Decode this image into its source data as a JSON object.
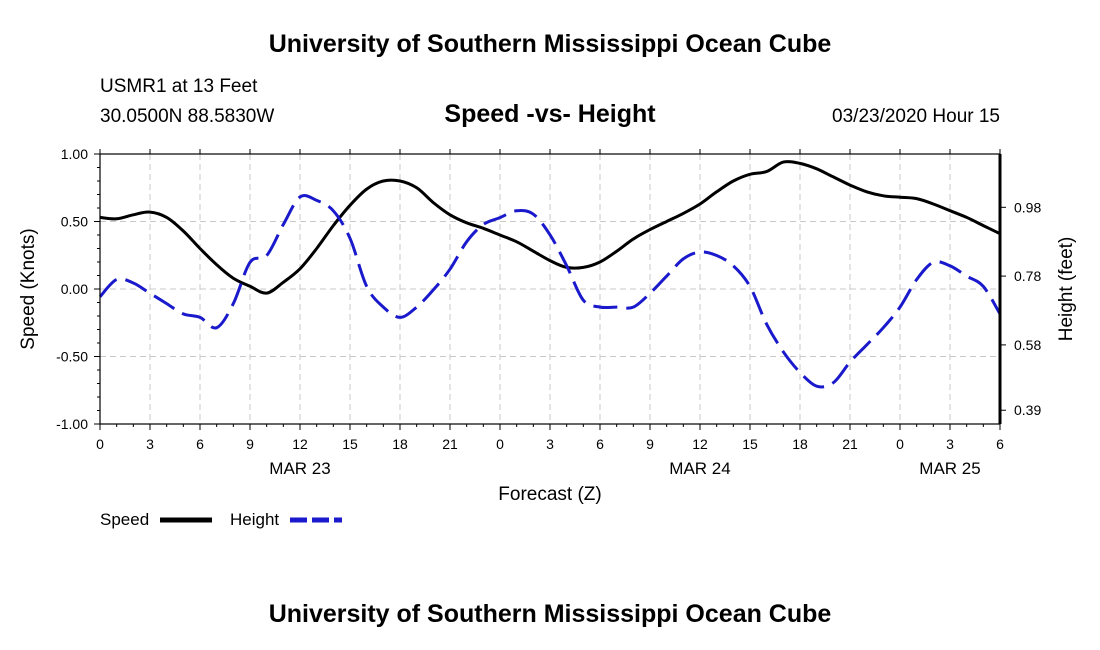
{
  "header": {
    "title": "University of Southern Mississippi Ocean Cube",
    "station": "USMR1 at 13 Feet",
    "coords": "30.0500N 88.5830W",
    "chart_title": "Speed -vs- Height",
    "date": "03/23/2020 Hour 15"
  },
  "footer": {
    "title": "University of Southern Mississippi Ocean Cube"
  },
  "legend": {
    "speed_label": "Speed",
    "height_label": "Height"
  },
  "colors": {
    "speed": "#000000",
    "height": "#1a1acc",
    "grid": "#c8c8c8"
  },
  "chart_data": {
    "type": "line",
    "title": "Speed -vs- Height",
    "xlabel": "Forecast (Z)",
    "ylabel": "Speed (Knots)",
    "ylabel_right": "Height (feet)",
    "x_range": [
      0,
      54
    ],
    "ylim": [
      -1.0,
      1.0
    ],
    "ylim_right": [
      0.35,
      1.135
    ],
    "x_ticks": [
      {
        "x": 0,
        "label": "0"
      },
      {
        "x": 3,
        "label": "3"
      },
      {
        "x": 6,
        "label": "6"
      },
      {
        "x": 9,
        "label": "9"
      },
      {
        "x": 12,
        "label": "12"
      },
      {
        "x": 15,
        "label": "15"
      },
      {
        "x": 18,
        "label": "18"
      },
      {
        "x": 21,
        "label": "21"
      },
      {
        "x": 24,
        "label": "0"
      },
      {
        "x": 27,
        "label": "3"
      },
      {
        "x": 30,
        "label": "6"
      },
      {
        "x": 33,
        "label": "9"
      },
      {
        "x": 36,
        "label": "12"
      },
      {
        "x": 39,
        "label": "15"
      },
      {
        "x": 42,
        "label": "18"
      },
      {
        "x": 45,
        "label": "21"
      },
      {
        "x": 48,
        "label": "0"
      },
      {
        "x": 51,
        "label": "3"
      },
      {
        "x": 54,
        "label": "6"
      }
    ],
    "date_labels": [
      {
        "x": 12,
        "label": "MAR 23"
      },
      {
        "x": 36,
        "label": "MAR 24"
      },
      {
        "x": 51,
        "label": "MAR 25"
      }
    ],
    "y_ticks_left": [
      {
        "value": 1.0,
        "label": "1.00"
      },
      {
        "value": 0.5,
        "label": "0.50"
      },
      {
        "value": 0.0,
        "label": "0.00"
      },
      {
        "value": -0.5,
        "label": "-0.50"
      },
      {
        "value": -1.0,
        "label": "-1.00"
      }
    ],
    "y_ticks_right": [
      {
        "value": 0.98,
        "label": "0.98"
      },
      {
        "value": 0.78,
        "label": "0.78"
      },
      {
        "value": 0.58,
        "label": "0.58"
      },
      {
        "value": 0.39,
        "label": "0.39"
      }
    ],
    "series": [
      {
        "name": "Speed",
        "axis": "left",
        "style": "solid",
        "x": [
          0,
          1,
          2,
          3,
          4,
          5,
          6,
          7,
          8,
          9,
          10,
          11,
          12,
          13,
          14,
          15,
          16,
          17,
          18,
          19,
          20,
          21,
          22,
          23,
          24,
          25,
          26,
          27,
          28,
          29,
          30,
          31,
          32,
          33,
          34,
          35,
          36,
          37,
          38,
          39,
          40,
          41,
          42,
          43,
          44,
          45,
          46,
          47,
          48,
          49,
          50,
          51,
          52,
          53,
          54
        ],
        "values": [
          0.53,
          0.52,
          0.55,
          0.57,
          0.53,
          0.43,
          0.3,
          0.18,
          0.08,
          0.02,
          -0.03,
          0.05,
          0.15,
          0.3,
          0.47,
          0.62,
          0.74,
          0.8,
          0.8,
          0.75,
          0.64,
          0.55,
          0.49,
          0.45,
          0.4,
          0.35,
          0.28,
          0.21,
          0.16,
          0.16,
          0.2,
          0.28,
          0.37,
          0.44,
          0.5,
          0.56,
          0.63,
          0.72,
          0.8,
          0.85,
          0.87,
          0.94,
          0.93,
          0.89,
          0.83,
          0.77,
          0.72,
          0.69,
          0.68,
          0.67,
          0.63,
          0.58,
          0.53,
          0.47,
          0.41
        ]
      },
      {
        "name": "Height",
        "axis": "right",
        "style": "dashed",
        "x": [
          0,
          1,
          2,
          3,
          4,
          5,
          6,
          7,
          8,
          9,
          10,
          11,
          12,
          13,
          14,
          15,
          16,
          17,
          18,
          19,
          20,
          21,
          22,
          23,
          24,
          25,
          26,
          27,
          28,
          29,
          30,
          31,
          32,
          33,
          34,
          35,
          36,
          37,
          38,
          39,
          40,
          41,
          42,
          43,
          44,
          45,
          46,
          47,
          48,
          49,
          50,
          51,
          52,
          53,
          54
        ],
        "values": [
          0.72,
          0.77,
          0.76,
          0.73,
          0.7,
          0.67,
          0.66,
          0.63,
          0.7,
          0.82,
          0.84,
          0.93,
          1.01,
          1.0,
          0.97,
          0.89,
          0.75,
          0.69,
          0.66,
          0.69,
          0.74,
          0.8,
          0.88,
          0.93,
          0.95,
          0.97,
          0.96,
          0.9,
          0.81,
          0.71,
          0.69,
          0.69,
          0.69,
          0.73,
          0.78,
          0.83,
          0.85,
          0.84,
          0.81,
          0.75,
          0.64,
          0.56,
          0.5,
          0.46,
          0.47,
          0.53,
          0.58,
          0.63,
          0.69,
          0.77,
          0.82,
          0.81,
          0.78,
          0.75,
          0.67
        ]
      }
    ]
  }
}
